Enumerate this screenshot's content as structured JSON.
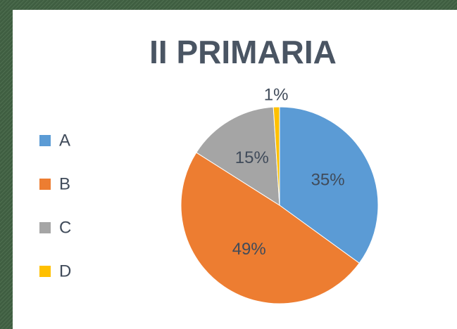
{
  "chart_data": {
    "type": "pie",
    "title": "II PRIMARIA",
    "categories": [
      "A",
      "B",
      "C",
      "D"
    ],
    "values": [
      35,
      49,
      15,
      1
    ],
    "value_labels": [
      "35%",
      "49%",
      "15%",
      "1%"
    ],
    "colors": [
      "#5b9bd5",
      "#ed7d31",
      "#a5a5a5",
      "#ffc000"
    ],
    "legend": "left"
  }
}
